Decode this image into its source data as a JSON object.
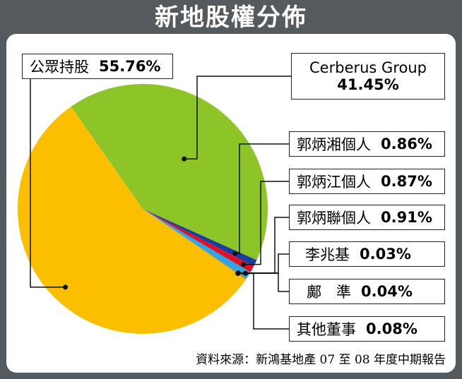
{
  "title": "新地股權分佈",
  "source": "資料來源：新鴻基地產 07 至 08 年度中期報告",
  "chart_data": {
    "type": "pie",
    "title": "新地股權分佈",
    "slices": [
      {
        "label": "公眾持股",
        "value": 55.76,
        "value_text": "55.76%",
        "color": "#fbbf00"
      },
      {
        "label": "Cerberus Group",
        "value": 41.45,
        "value_text": "41.45%",
        "color": "#8dc427"
      },
      {
        "label": "郭炳湘個人",
        "value": 0.86,
        "value_text": "0.86%",
        "color": "#1a3e9c"
      },
      {
        "label": "郭炳江個人",
        "value": 0.87,
        "value_text": "0.87%",
        "color": "#e0102a"
      },
      {
        "label": "郭炳聯個人",
        "value": 0.91,
        "value_text": "0.91%",
        "color": "#2aa8e6"
      },
      {
        "label": "李兆基",
        "value": 0.03,
        "value_text": "0.03%",
        "color": "#444444"
      },
      {
        "label": "鄺　準",
        "value": 0.04,
        "value_text": "0.04%",
        "color": "#666666"
      },
      {
        "label": "其他董事",
        "value": 0.08,
        "value_text": "0.08%",
        "color": "#888888"
      }
    ]
  }
}
